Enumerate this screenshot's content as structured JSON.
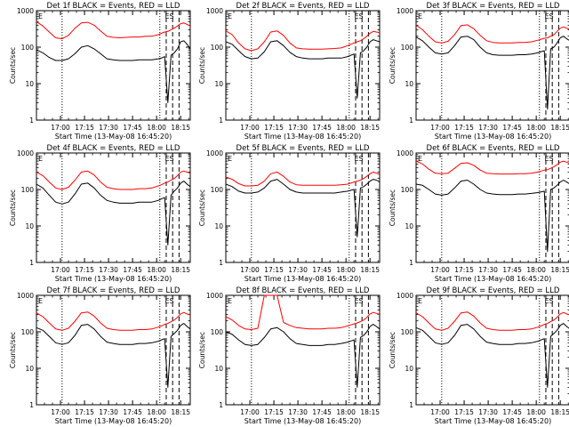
{
  "chart_data": {
    "type": "line",
    "layout": "3x3 grid",
    "shared": {
      "xlabel": "Start Time (13-May-08 16:45:20)",
      "ylabel": "Counts/sec",
      "yscale": "log",
      "ylim": [
        1,
        1000
      ],
      "ytick_labels": [
        "1",
        "10",
        "100",
        "1000"
      ],
      "xlim_minutes_after_1645": [
        0,
        96
      ],
      "xtick_labels": [
        "17:00",
        "17:15",
        "17:30",
        "17:45",
        "18:00",
        "18:15"
      ],
      "top_left_label": "E",
      "top_right_label": "ES",
      "colors": {
        "events": "#000000",
        "lld": "#ff0000"
      },
      "x": [
        0,
        4,
        8,
        12,
        16,
        20,
        24,
        28,
        32,
        36,
        40,
        44,
        48,
        52,
        56,
        60,
        64,
        68,
        72,
        76,
        78,
        80,
        82,
        84,
        86,
        88,
        90,
        92,
        94,
        96
      ]
    },
    "panels": [
      {
        "title": "Det 1f BLACK = Events, RED = LLD",
        "series": [
          {
            "name": "Events",
            "values": [
              85,
              70,
              52,
              43,
              43,
              48,
              66,
              100,
              110,
              90,
              66,
              48,
              45,
              43,
              43,
              43,
              45,
              45,
              45,
              48,
              50,
              55,
              3,
              60,
              70,
              90,
              140,
              150,
              120,
              90
            ]
          },
          {
            "name": "LLD",
            "values": [
              500,
              380,
              260,
              180,
              170,
              210,
              330,
              460,
              480,
              400,
              280,
              200,
              185,
              180,
              185,
              190,
              190,
              200,
              200,
              220,
              240,
              260,
              270,
              300,
              330,
              380,
              440,
              460,
              420,
              380
            ]
          }
        ]
      },
      {
        "title": "Det 2f BLACK = Events, RED = LLD",
        "series": [
          {
            "name": "Events",
            "values": [
              140,
              120,
              80,
              55,
              48,
              50,
              75,
              140,
              150,
              110,
              72,
              55,
              50,
              48,
              48,
              48,
              50,
              50,
              50,
              55,
              60,
              65,
              4,
              70,
              80,
              100,
              140,
              160,
              150,
              140
            ]
          },
          {
            "name": "LLD",
            "values": [
              280,
              220,
              130,
              90,
              80,
              90,
              140,
              260,
              280,
              210,
              130,
              95,
              90,
              88,
              88,
              88,
              90,
              92,
              95,
              110,
              120,
              130,
              140,
              150,
              170,
              200,
              240,
              270,
              260,
              250
            ]
          }
        ]
      },
      {
        "title": "Det 3f BLACK = Events, RED = LLD",
        "series": [
          {
            "name": "Events",
            "values": [
              190,
              150,
              100,
              70,
              65,
              70,
              110,
              190,
              200,
              160,
              100,
              70,
              62,
              60,
              60,
              60,
              62,
              62,
              65,
              70,
              75,
              80,
              2,
              90,
              100,
              130,
              180,
              200,
              170,
              150
            ]
          },
          {
            "name": "LLD",
            "values": [
              400,
              300,
              200,
              140,
              130,
              145,
              220,
              390,
              410,
              320,
              210,
              150,
              135,
              130,
              130,
              130,
              135,
              135,
              140,
              155,
              165,
              175,
              180,
              200,
              220,
              270,
              330,
              360,
              330,
              310
            ]
          }
        ]
      },
      {
        "title": "Det 4f BLACK = Events, RED = LLD",
        "series": [
          {
            "name": "Events",
            "values": [
              140,
              110,
              70,
              45,
              40,
              45,
              75,
              140,
              150,
              110,
              70,
              50,
              45,
              42,
              42,
              42,
              45,
              45,
              45,
              50,
              55,
              60,
              3,
              70,
              90,
              110,
              150,
              170,
              140,
              120
            ]
          },
          {
            "name": "LLD",
            "values": [
              300,
              240,
              160,
              110,
              100,
              115,
              180,
              300,
              320,
              250,
              160,
              115,
              105,
              100,
              100,
              100,
              105,
              105,
              110,
              125,
              135,
              150,
              160,
              180,
              200,
              240,
              300,
              320,
              300,
              280
            ]
          }
        ]
      },
      {
        "title": "Det 5f BLACK = Events, RED = LLD",
        "series": [
          {
            "name": "Events",
            "values": [
              140,
              120,
              90,
              80,
              80,
              85,
              110,
              170,
              190,
              140,
              100,
              85,
              80,
              80,
              80,
              80,
              80,
              80,
              85,
              90,
              95,
              100,
              5,
              110,
              120,
              140,
              170,
              190,
              180,
              160
            ]
          },
          {
            "name": "LLD",
            "values": [
              220,
              190,
              145,
              125,
              125,
              130,
              170,
              270,
              300,
              230,
              160,
              135,
              130,
              130,
              130,
              130,
              130,
              130,
              135,
              140,
              150,
              160,
              170,
              180,
              200,
              230,
              270,
              300,
              280,
              260
            ]
          }
        ]
      },
      {
        "title": "Det 6f BLACK = Events, RED = LLD",
        "series": [
          {
            "name": "Events",
            "values": [
              140,
              130,
              100,
              75,
              70,
              75,
              110,
              170,
              180,
              140,
              100,
              80,
              75,
              72,
              72,
              72,
              75,
              75,
              78,
              82,
              86,
              90,
              2,
              100,
              110,
              130,
              160,
              180,
              160,
              140
            ]
          },
          {
            "name": "LLD",
            "values": [
              600,
              500,
              360,
              280,
              270,
              280,
              380,
              520,
              540,
              460,
              340,
              280,
              270,
              265,
              265,
              265,
              270,
              270,
              280,
              300,
              320,
              340,
              350,
              380,
              420,
              480,
              560,
              600,
              560,
              520
            ]
          }
        ]
      },
      {
        "title": "Det 7f BLACK = Events, RED = LLD",
        "series": [
          {
            "name": "Events",
            "values": [
              130,
              110,
              75,
              50,
              45,
              50,
              80,
              150,
              160,
              120,
              75,
              52,
              48,
              45,
              45,
              45,
              48,
              48,
              50,
              55,
              60,
              65,
              3,
              75,
              90,
              110,
              150,
              170,
              140,
              120
            ]
          },
          {
            "name": "LLD",
            "values": [
              330,
              260,
              175,
              120,
              110,
              125,
              195,
              330,
              350,
              270,
              175,
              125,
              115,
              110,
              110,
              110,
              115,
              115,
              120,
              135,
              145,
              160,
              170,
              190,
              210,
              250,
              310,
              340,
              310,
              290
            ]
          }
        ]
      },
      {
        "title": "Det 8f BLACK = Events, RED = LLD",
        "series": [
          {
            "name": "Events",
            "values": [
              100,
              85,
              60,
              45,
              42,
              45,
              70,
              120,
              130,
              100,
              65,
              48,
              45,
              42,
              42,
              42,
              45,
              45,
              48,
              52,
              56,
              60,
              3,
              70,
              80,
              100,
              140,
              160,
              140,
              120
            ]
          },
          {
            "name": "LLD",
            "values": [
              260,
              210,
              150,
              120,
              115,
              125,
              1000,
              1000,
              1000,
              180,
              150,
              130,
              125,
              120,
              120,
              120,
              125,
              125,
              130,
              145,
              155,
              165,
              175,
              190,
              210,
              250,
              310,
              340,
              320,
              300
            ]
          }
        ]
      },
      {
        "title": "Det 9f BLACK = Events, RED = LLD",
        "series": [
          {
            "name": "Events",
            "values": [
              130,
              110,
              75,
              50,
              45,
              50,
              80,
              150,
              160,
              120,
              75,
              52,
              48,
              45,
              45,
              45,
              48,
              48,
              50,
              55,
              60,
              65,
              3,
              75,
              90,
              110,
              150,
              170,
              140,
              120
            ]
          },
          {
            "name": "LLD",
            "values": [
              330,
              260,
              175,
              120,
              110,
              125,
              195,
              330,
              350,
              270,
              175,
              125,
              115,
              110,
              110,
              110,
              115,
              115,
              120,
              135,
              145,
              160,
              170,
              190,
              210,
              250,
              310,
              340,
              310,
              290
            ]
          }
        ]
      }
    ]
  }
}
